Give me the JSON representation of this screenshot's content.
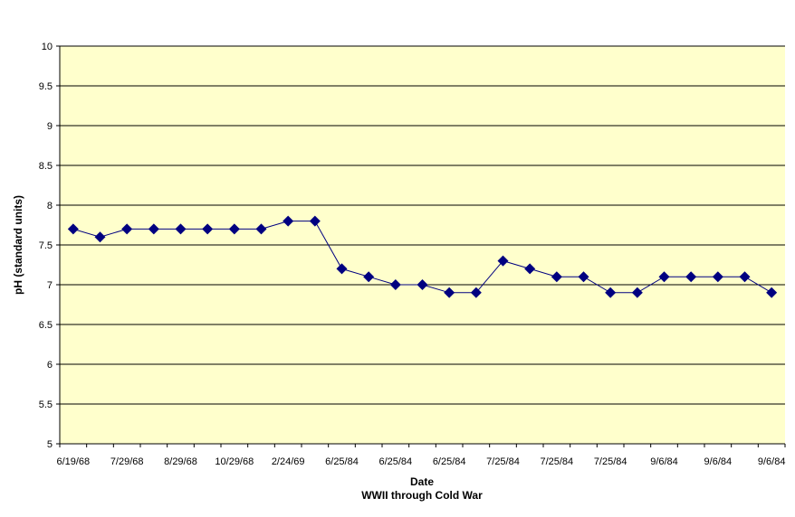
{
  "chart_data": {
    "type": "line",
    "title": "",
    "xlabel": "Date",
    "xlabel_sub": "WWII through Cold War",
    "ylabel": "pH (standard units)",
    "ylim": [
      5,
      10
    ],
    "yticks": [
      5,
      5.5,
      6,
      6.5,
      7,
      7.5,
      8,
      8.5,
      9,
      9.5,
      10
    ],
    "grid": true,
    "legend": "none",
    "x_tick_labels": [
      "6/19/68",
      "7/29/68",
      "8/29/68",
      "10/29/68",
      "2/24/69",
      "6/25/84",
      "6/25/84",
      "6/25/84",
      "7/25/84",
      "7/25/84",
      "7/25/84",
      "9/6/84",
      "9/6/84",
      "9/6/84"
    ],
    "series": [
      {
        "values": [
          7.7,
          7.6,
          7.7,
          7.7,
          7.7,
          7.7,
          7.7,
          7.7,
          7.8,
          7.8,
          7.2,
          7.1,
          7.0,
          7.0,
          6.9,
          6.9,
          7.3,
          7.2,
          7.1,
          7.1,
          6.9,
          6.9,
          7.1,
          7.1,
          7.1,
          7.1,
          6.9
        ]
      }
    ],
    "colors": {
      "plot_background": "#FFFFCC",
      "series": "#000080",
      "gridlines": "#000000"
    }
  }
}
